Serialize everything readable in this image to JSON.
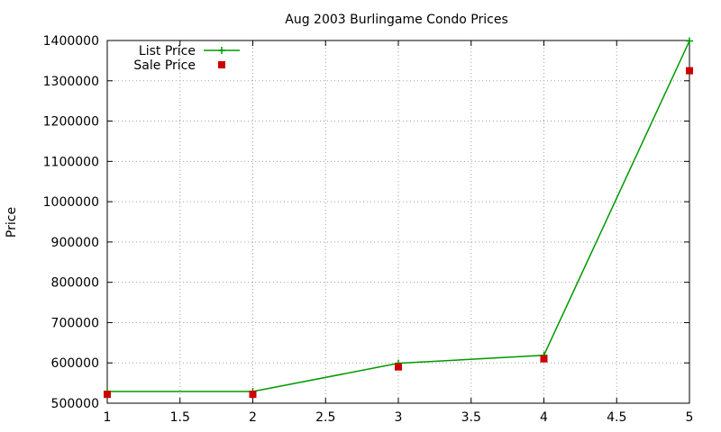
{
  "chart_data": {
    "type": "line",
    "title": "Aug 2003 Burlingame Condo Prices",
    "xlabel": "",
    "ylabel": "Price",
    "xlim": [
      1,
      5
    ],
    "ylim": [
      500000,
      1400000
    ],
    "xticks": [
      1,
      1.5,
      2,
      2.5,
      3,
      3.5,
      4,
      4.5,
      5
    ],
    "xtick_labels": [
      "1",
      "1.5",
      "2",
      "2.5",
      "3",
      "3.5",
      "4",
      "4.5",
      "5"
    ],
    "yticks": [
      500000,
      600000,
      700000,
      800000,
      900000,
      1000000,
      1100000,
      1200000,
      1300000,
      1400000
    ],
    "ytick_labels": [
      "500000",
      "600000",
      "700000",
      "800000",
      "900000",
      "1000000",
      "1100000",
      "1200000",
      "1300000",
      "1400000"
    ],
    "grid": true,
    "legend_position": "top-left",
    "series": [
      {
        "name": "List Price",
        "style": "line-with-plus-markers",
        "color": "#009900",
        "x": [
          1,
          2,
          3,
          4,
          5
        ],
        "values": [
          529000,
          529000,
          599000,
          619000,
          1399000
        ]
      },
      {
        "name": "Sale Price",
        "style": "square-markers",
        "color": "#cc0000",
        "x": [
          1,
          2,
          3,
          4,
          5
        ],
        "values": [
          522000,
          522000,
          590000,
          610000,
          1325000
        ]
      }
    ]
  }
}
